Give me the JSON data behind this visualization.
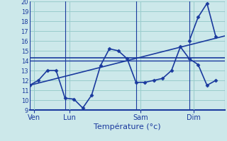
{
  "background_color": "#cce8ea",
  "grid_color": "#99cccc",
  "line_color": "#1a3a9e",
  "marker_color": "#1a3a9e",
  "xlabel": "Température (°c)",
  "ylim": [
    9,
    20
  ],
  "yticks": [
    9,
    10,
    11,
    12,
    13,
    14,
    15,
    16,
    17,
    18,
    19,
    20
  ],
  "day_labels": [
    "Ven",
    "Lun",
    "Sam",
    "Dim"
  ],
  "day_positions": [
    0.5,
    4.5,
    12.5,
    18.5
  ],
  "vline_positions": [
    0,
    4,
    12,
    18,
    22
  ],
  "x_total_min": 0,
  "x_total_max": 22,
  "main_series_x": [
    0,
    1,
    2,
    3,
    4,
    5,
    6,
    7,
    8,
    9,
    10,
    11,
    12,
    13,
    14,
    15,
    16,
    17,
    18,
    19,
    20,
    21
  ],
  "main_series_y": [
    11.5,
    12.0,
    13.0,
    13.0,
    10.2,
    10.1,
    9.2,
    10.5,
    13.5,
    15.2,
    15.0,
    14.2,
    11.8,
    11.8,
    12.0,
    12.2,
    13.0,
    15.4,
    14.2,
    13.6,
    11.5,
    12.0
  ],
  "flat_line_y": 14.3,
  "trend_line_start_y": 11.5,
  "trend_line_end_y": 16.5,
  "flat_line2_y": 14.0,
  "dim_series_x": [
    18,
    19,
    20,
    21
  ],
  "dim_series_y": [
    16.0,
    18.4,
    19.8,
    16.4
  ],
  "bottom_spine_color": "#1a3a9e",
  "vline_color": "#1a3a9e",
  "ytick_fontsize": 6,
  "xtick_fontsize": 7,
  "xlabel_fontsize": 8
}
